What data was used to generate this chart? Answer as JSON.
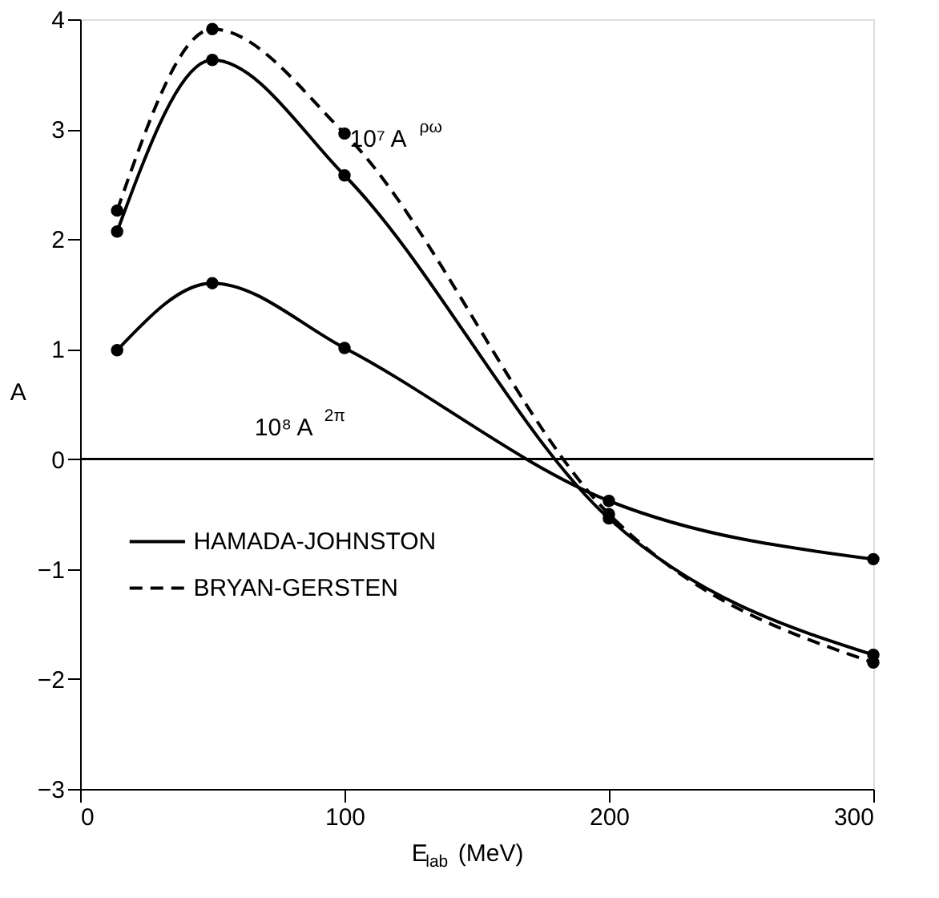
{
  "chart_data": {
    "type": "line",
    "xlabel": "E$_{lab}$ (MeV)",
    "ylabel": "A",
    "x": [
      14,
      50,
      100,
      200,
      300
    ],
    "xlim": [
      0,
      300
    ],
    "xticks": [
      0,
      100,
      200,
      300
    ],
    "ylim": [
      -3,
      4
    ],
    "yticks": [
      -3,
      -2,
      -1,
      0,
      1,
      2,
      3,
      4
    ],
    "series": [
      {
        "name": "HAMADA-JOHNSTON",
        "color": "#000000",
        "line_style": "solid",
        "values": [
          2.07,
          3.63,
          2.58,
          -0.54,
          -1.78
        ]
      },
      {
        "name": "BRYAN-GERSTEN",
        "color": "#000000",
        "line_style": "dashed",
        "values": [
          2.26,
          3.91,
          2.96,
          -0.5,
          -1.85
        ]
      },
      {
        "color": "#000000",
        "line_style": "solid",
        "values": [
          0.99,
          1.6,
          1.01,
          -0.38,
          -0.91
        ]
      }
    ],
    "marker": "circle",
    "grid": false,
    "legend": "bottom left",
    "ref_lines": [
      {
        "axis": "y",
        "value": 0,
        "color": "#000000"
      }
    ],
    "annotations": [
      "10⁷ A$^{ρω}$",
      "10⁸ A$^{2π}$"
    ]
  }
}
